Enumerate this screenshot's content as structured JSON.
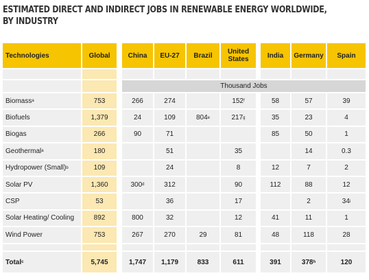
{
  "title": [
    "ESTIMATED DIRECT AND INDIRECT JOBS IN RENEWABLE ENERGY WORLDWIDE,",
    "BY INDUSTRY"
  ],
  "table": {
    "columns": [
      "Technologies",
      "Global",
      "China",
      "EU-27",
      "Brazil",
      "United States",
      "India",
      "Germany",
      "Spain"
    ],
    "unit": "Thousand Jobs",
    "rows": [
      {
        "label": "Biomass",
        "note": "a",
        "cells": [
          "753",
          "266",
          "274",
          null,
          {
            "text": "152",
            "note": "f"
          },
          "58",
          "57",
          "39"
        ]
      },
      {
        "label": "Biofuels",
        "cells": [
          "1,379",
          "24",
          "109",
          {
            "text": "804",
            "note": "e"
          },
          {
            "text": "217",
            "note": "g"
          },
          "35",
          "23",
          "4"
        ]
      },
      {
        "label": "Biogas",
        "cells": [
          "266",
          "90",
          "71",
          null,
          null,
          "85",
          "50",
          "1"
        ]
      },
      {
        "label": "Geothermal",
        "note": "a",
        "cells": [
          "180",
          null,
          "51",
          null,
          "35",
          null,
          "14",
          "0.3"
        ]
      },
      {
        "label": "Hydropower (Small)",
        "note": "b",
        "cells": [
          "109",
          null,
          "24",
          null,
          "8",
          "12",
          "7",
          "2"
        ]
      },
      {
        "label": "Solar PV",
        "cells": [
          "1,360",
          {
            "text": "300",
            "note": "d"
          },
          "312",
          null,
          "90",
          "112",
          "88",
          "12"
        ]
      },
      {
        "label": "CSP",
        "cells": [
          "53",
          null,
          "36",
          null,
          "17",
          null,
          "2",
          {
            "text": "34",
            "note": "i"
          }
        ]
      },
      {
        "label": "Solar Heating/ Cooling",
        "cells": [
          "892",
          "800",
          "32",
          null,
          "12",
          "41",
          "11",
          "1"
        ]
      },
      {
        "label": "Wind Power",
        "cells": [
          "753",
          "267",
          "270",
          "29",
          "81",
          "48",
          "118",
          "28"
        ]
      }
    ],
    "total": {
      "label": "Total",
      "note": "c",
      "cells": [
        "5,745",
        "1,747",
        "1,179",
        "833",
        "611",
        "391",
        {
          "text": "378",
          "note": "h"
        },
        "120"
      ]
    }
  }
}
